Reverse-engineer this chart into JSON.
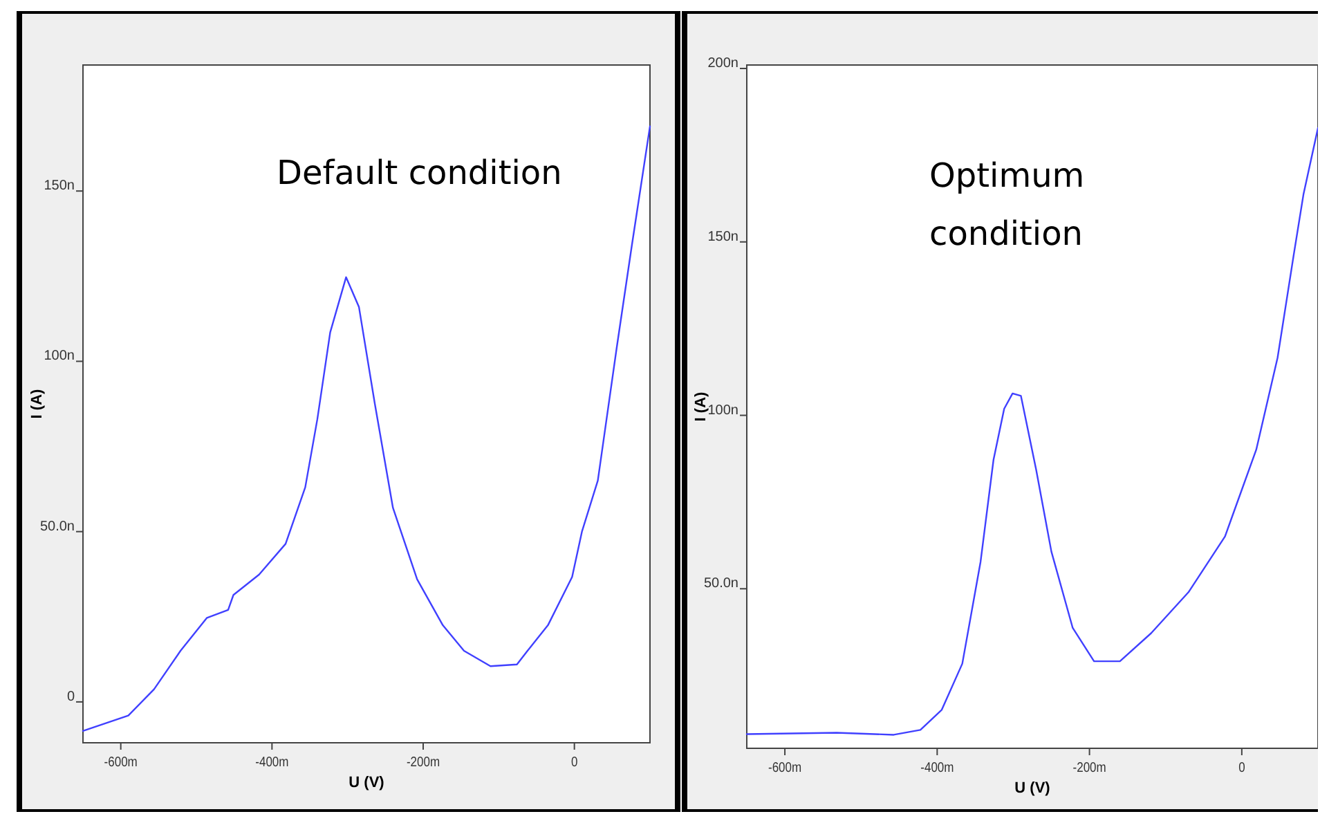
{
  "chart_data": [
    {
      "type": "line",
      "xlabel": "U (V)",
      "ylabel": "I (A)",
      "annotations": [
        "Default condition"
      ],
      "xlim": [
        -650,
        100
      ],
      "ylim": [
        -12,
        187
      ],
      "xticks": [
        {
          "value": -600,
          "label": "-600m"
        },
        {
          "value": -400,
          "label": "-400m"
        },
        {
          "value": -200,
          "label": "-200m"
        },
        0
      ],
      "yticks": [
        0,
        {
          "value": 50,
          "label": "50.0n"
        },
        {
          "value": 100,
          "label": "100n"
        },
        {
          "value": 150,
          "label": "150n"
        }
      ],
      "series": [
        {
          "color": "#4040ff",
          "x": [
            -650,
            -590,
            -556,
            -521,
            -486,
            -458,
            -451,
            -417,
            -382,
            -356,
            -340,
            -323,
            -302,
            -285,
            -264,
            -240,
            -208,
            -174,
            -146,
            -111,
            -76,
            -62,
            -35,
            -3,
            10,
            31,
            56,
            76,
            100
          ],
          "values": [
            -8.5,
            -4,
            3.7,
            15,
            24.7,
            27,
            31.4,
            37.4,
            46.4,
            63,
            83,
            108.5,
            124.7,
            116,
            87.6,
            57,
            36,
            22.5,
            15,
            10.5,
            11,
            15,
            22.5,
            36.7,
            50,
            65,
            104,
            134,
            169
          ]
        }
      ]
    },
    {
      "type": "line",
      "xlabel": "U (V)",
      "ylabel": "I (A)",
      "annotations": [
        "Optimum condition"
      ],
      "xlim": [
        -650,
        100
      ],
      "ylim": [
        4,
        201
      ],
      "xticks": [
        {
          "value": -600,
          "label": "-600m"
        },
        {
          "value": -400,
          "label": "-400m"
        },
        {
          "value": -200,
          "label": "-200m"
        },
        0
      ],
      "yticks": [
        {
          "value": 50,
          "label": "50.0n"
        },
        {
          "value": 100,
          "label": "100n"
        },
        {
          "value": 150,
          "label": "150n"
        },
        {
          "value": 200,
          "label": "200n"
        }
      ],
      "series": [
        {
          "color": "#4040ff",
          "x": [
            -650,
            -532,
            -457,
            -422,
            -394,
            -367,
            -343,
            -326,
            -312,
            -301,
            -290,
            -270,
            -250,
            -222,
            -194,
            -160,
            -119,
            -70,
            -22,
            19,
            47,
            68,
            81,
            100
          ],
          "values": [
            8.1,
            8.5,
            7.9,
            9.3,
            15.1,
            28.4,
            57.8,
            87.2,
            101.9,
            106.3,
            105.6,
            84.3,
            60.7,
            38.7,
            29.1,
            29.1,
            37.2,
            49,
            65.1,
            90.1,
            116.6,
            146,
            163.7,
            182.8
          ]
        }
      ]
    }
  ]
}
